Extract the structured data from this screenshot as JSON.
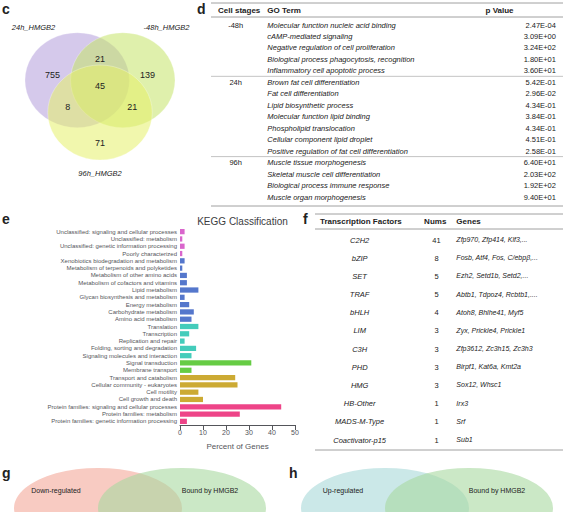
{
  "chart_data": [
    {
      "type": "venn",
      "annotations": [
        "c"
      ],
      "series": [
        {
          "name": "24h_HMGB2",
          "color": "#b39ddb"
        },
        {
          "name": "-48h_HMGB2",
          "color": "#c5e368"
        },
        {
          "name": "96h_HMGB2",
          "color": "#e6f06a"
        }
      ],
      "values": [
        755,
        139,
        71,
        21,
        8,
        21,
        45
      ]
    },
    {
      "type": "table",
      "annotations": [
        "d"
      ],
      "headers": [
        "Cell stages",
        "GO Term",
        "p Value"
      ],
      "rows": [
        [
          "-48h",
          "Molecular function nucleic acid binding",
          "2.47E-04"
        ],
        [
          "",
          "cAMP-mediated signaling",
          "3.09E+00"
        ],
        [
          "",
          "Negative regulation of cell proliferation",
          "3.24E+02"
        ],
        [
          "",
          "Biological process phagocytosis, recognition",
          "1.80E+01"
        ],
        [
          "",
          "Inflammatory cell apoptotic process",
          "3.60E+01"
        ],
        [
          "24h",
          "Brown fat cell differentiation",
          "5.42E-01"
        ],
        [
          "",
          "Fat cell differentiation",
          "2.96E-02"
        ],
        [
          "",
          "Lipid biosynthetic process",
          "4.34E-01"
        ],
        [
          "",
          "Molecular function lipid binding",
          "3.84E-01"
        ],
        [
          "",
          "Phospholipid translocation",
          "4.34E-01"
        ],
        [
          "",
          "Cellular component lipid droplet",
          "4.51E-01"
        ],
        [
          "",
          "Positive regulation of fat cell differentiation",
          "2.58E-01"
        ],
        [
          "96h",
          "Muscle tissue morphogenesis",
          "6.40E+01"
        ],
        [
          "",
          "Skeletal muscle cell differentiation",
          "2.03E+02"
        ],
        [
          "",
          "Biological process immune response",
          "1.92E+02"
        ],
        [
          "",
          "Muscle organ morphogenesis",
          "9.40E+01"
        ]
      ]
    },
    {
      "type": "bar",
      "orientation": "horizontal",
      "annotations": [
        "e"
      ],
      "title": "KEGG Classification",
      "xlabel": "Percent of Genes",
      "categories": [
        "Unclassified: signaling and cellular processes",
        "Unclassified: metabolism",
        "Unclassified: genetic information processing",
        "Poorly characterized",
        "Xenobiotics biodegradation and metabolism",
        "Metabolism of terpenoids and polyketides",
        "Metabolism of other amino acids",
        "Metabolism of cofactors and vitamins",
        "Lipid metabolism",
        "Glycan biosynthesis and metabolism",
        "Energy metabolism",
        "Carbohydrate metabolism",
        "Amino acid metabolism",
        "Translation",
        "Transcription",
        "Replication and repair",
        "Folding, sorting and degradation",
        "Signaling molecules and interaction",
        "Signal transduction",
        "Membrane transport",
        "Transport and catabolism",
        "Cellular community - eukaryotes",
        "Cell motility",
        "Cell growth and death",
        "Protein families: signaling and cellular processes",
        "Protein families: metabolism",
        "Protein families: genetic information processing"
      ],
      "values": [
        2,
        1,
        2,
        1,
        2,
        1,
        3,
        3,
        8,
        2,
        4,
        6,
        5,
        8,
        4,
        2,
        7,
        5,
        31,
        5,
        24,
        25,
        8,
        10,
        44,
        26,
        3
      ],
      "colors": [
        "#d966cc",
        "#d966cc",
        "#d966cc",
        "#d966cc",
        "#5577cc",
        "#5577cc",
        "#5577cc",
        "#5577cc",
        "#5577cc",
        "#5577cc",
        "#5577cc",
        "#5577cc",
        "#5577cc",
        "#44ccbb",
        "#44ccbb",
        "#44ccbb",
        "#44ccbb",
        "#44ccbb",
        "#66cc44",
        "#66cc44",
        "#ccaa33",
        "#ccaa33",
        "#ccaa33",
        "#ccaa33",
        "#ee4488",
        "#ee4488",
        "#ee4488"
      ],
      "xlim": [
        0,
        50
      ],
      "xticks": [
        0,
        10,
        20,
        30,
        40,
        50
      ],
      "grid": false
    },
    {
      "type": "table",
      "annotations": [
        "f"
      ],
      "headers": [
        "Transcription Factors",
        "Nums",
        "Genes"
      ],
      "rows": [
        [
          "C2H2",
          "41",
          "Zfp970, Zfp414, Klf3,..."
        ],
        [
          "bZIP",
          "8",
          "Fosb, Atf4, Fos, C/ebpβ,..."
        ],
        [
          "SET",
          "5",
          "Ezh2, Setd1b, Setd2,..."
        ],
        [
          "TRAF",
          "5",
          "Abtb1, Tdpoz4, Rcbtb1,...."
        ],
        [
          "bHLH",
          "4",
          "Atoh8, Bhlhe41, Myf5"
        ],
        [
          "LIM",
          "3",
          "Zyx, Prickle4, Prickle1"
        ],
        [
          "C3H",
          "3",
          "Zfp3612, Zc3h15, Zc3h3"
        ],
        [
          "PHD",
          "3",
          "Birpf1, Kat6a, Kmt2a"
        ],
        [
          "HMG",
          "3",
          "Sox12, Whsc1"
        ],
        [
          "HB-Other",
          "1",
          "Irx3"
        ],
        [
          "MADS-M-Type",
          "1",
          "Srf"
        ],
        [
          "Coactivator-p15",
          "1",
          "Sub1"
        ]
      ]
    },
    {
      "type": "venn",
      "annotations": [
        "g"
      ],
      "series": [
        {
          "name": "Down-regulated",
          "color": "#f4a89a"
        },
        {
          "name": "Bound by HMGB2",
          "color": "#a8d8a0"
        }
      ]
    },
    {
      "type": "venn",
      "annotations": [
        "h"
      ],
      "series": [
        {
          "name": "Up-regulated",
          "color": "#a8d8d8"
        },
        {
          "name": "Bound by HMGB2",
          "color": "#a8d8a0"
        }
      ]
    }
  ]
}
